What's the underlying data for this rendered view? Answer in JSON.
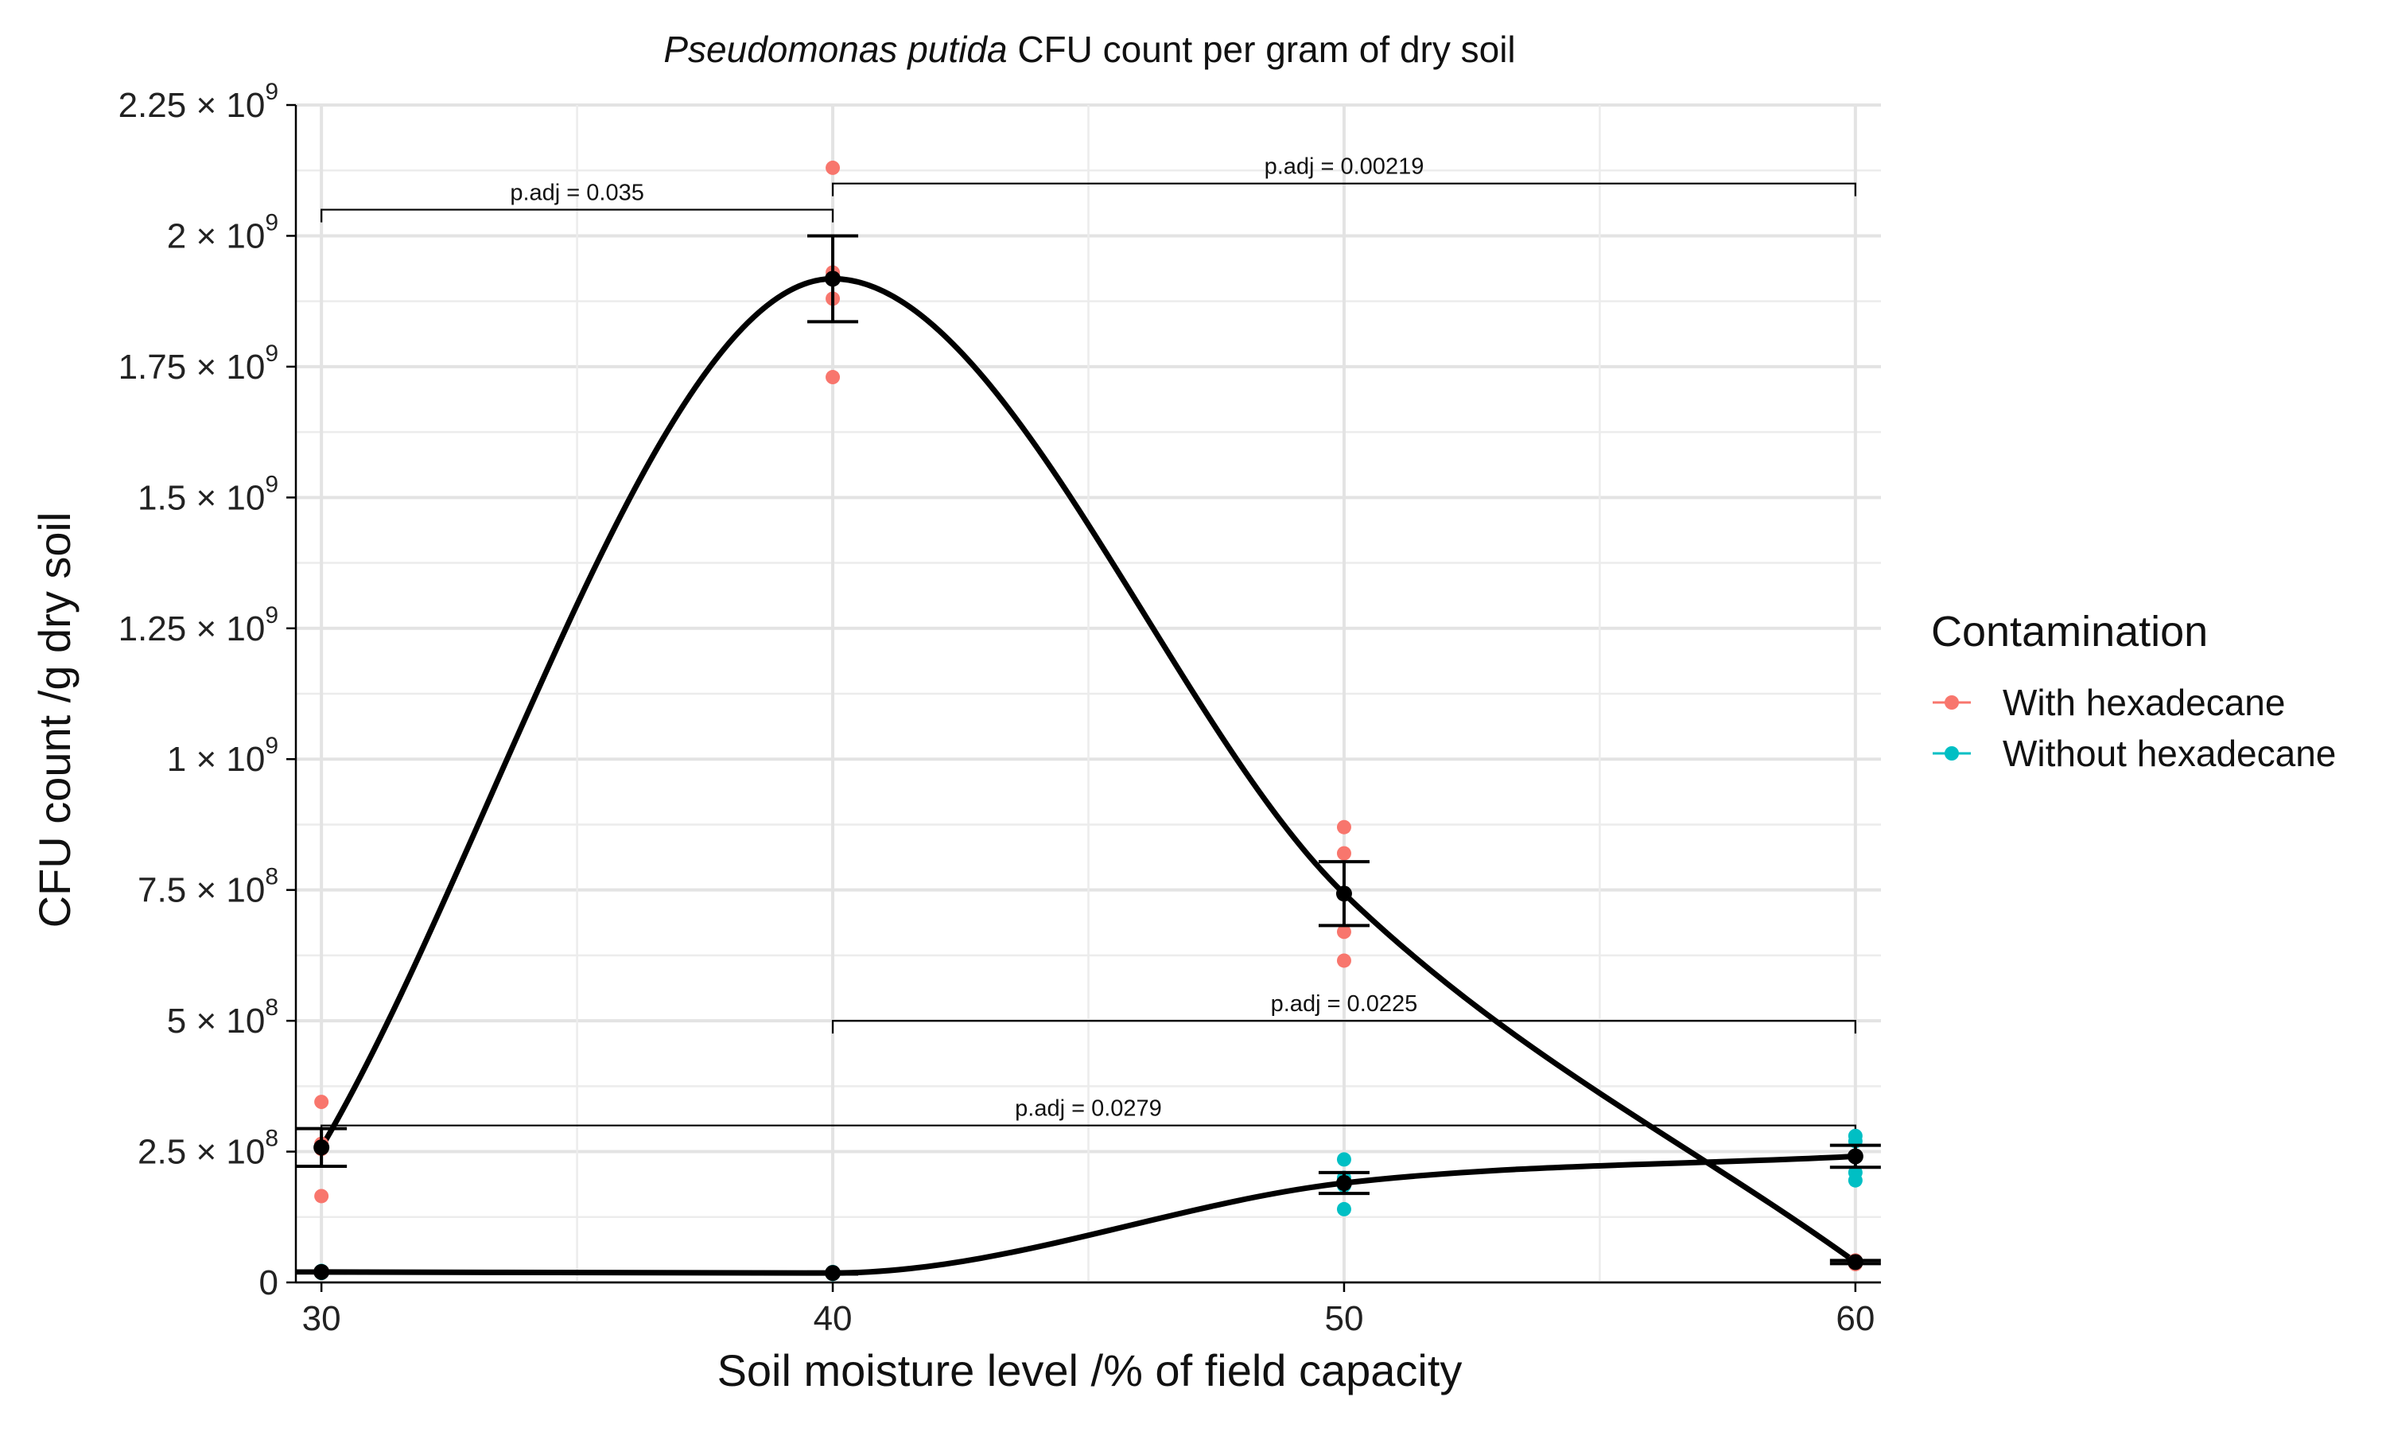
{
  "chart_data": {
    "type": "scatter",
    "title_italic": "Pseudomonas putida",
    "title_rest": " CFU count per gram of dry soil",
    "xlabel": "Soil moisture level /% of field capacity",
    "ylabel": "CFU count /g dry soil",
    "xlim": [
      29.5,
      60.5
    ],
    "ylim": [
      0,
      2250000000
    ],
    "x_ticks": [
      30,
      40,
      50,
      60
    ],
    "x_tick_labels": [
      "30",
      "40",
      "50",
      "60"
    ],
    "y_ticks": [
      0,
      250000000,
      500000000,
      750000000,
      1000000000,
      1250000000,
      1500000000,
      1750000000,
      2000000000,
      2250000000
    ],
    "y_tick_labels": [
      {
        "mant": "0",
        "exp": ""
      },
      {
        "mant": "2.5 × 10",
        "exp": "8"
      },
      {
        "mant": "5 × 10",
        "exp": "8"
      },
      {
        "mant": "7.5 × 10",
        "exp": "8"
      },
      {
        "mant": "1 × 10",
        "exp": "9"
      },
      {
        "mant": "1.25 × 10",
        "exp": "9"
      },
      {
        "mant": "1.5 × 10",
        "exp": "9"
      },
      {
        "mant": "1.75 × 10",
        "exp": "9"
      },
      {
        "mant": "2 × 10",
        "exp": "9"
      },
      {
        "mant": "2.25 × 10",
        "exp": "9"
      }
    ],
    "grid": true,
    "legend": {
      "title": "Contamination",
      "position": "right",
      "entries": [
        {
          "label": "With hexadecane",
          "color": "#F8766D"
        },
        {
          "label": "Without hexadecane",
          "color": "#00BFC4"
        }
      ]
    },
    "series": [
      {
        "name": "With hexadecane",
        "color": "#F8766D",
        "points": [
          {
            "x": 30,
            "y": 345000000
          },
          {
            "x": 30,
            "y": 265000000
          },
          {
            "x": 30,
            "y": 255000000
          },
          {
            "x": 30,
            "y": 165000000
          },
          {
            "x": 40,
            "y": 2130000000
          },
          {
            "x": 40,
            "y": 1930000000
          },
          {
            "x": 40,
            "y": 1880000000
          },
          {
            "x": 40,
            "y": 1730000000
          },
          {
            "x": 50,
            "y": 870000000
          },
          {
            "x": 50,
            "y": 820000000
          },
          {
            "x": 50,
            "y": 670000000
          },
          {
            "x": 50,
            "y": 615000000
          },
          {
            "x": 60,
            "y": 42000000
          },
          {
            "x": 60,
            "y": 38000000
          },
          {
            "x": 60,
            "y": 35000000
          },
          {
            "x": 60,
            "y": 40000000
          }
        ],
        "means": [
          {
            "x": 30,
            "y": 258000000,
            "err": 36000000
          },
          {
            "x": 40,
            "y": 1918000000,
            "err": 82000000
          },
          {
            "x": 50,
            "y": 743000000,
            "err": 61000000
          },
          {
            "x": 60,
            "y": 39000000,
            "err": 3000000
          }
        ]
      },
      {
        "name": "Without hexadecane",
        "color": "#00BFC4",
        "points": [
          {
            "x": 30,
            "y": 22000000
          },
          {
            "x": 30,
            "y": 20000000
          },
          {
            "x": 30,
            "y": 18000000
          },
          {
            "x": 30,
            "y": 21000000
          },
          {
            "x": 40,
            "y": 20000000
          },
          {
            "x": 40,
            "y": 18000000
          },
          {
            "x": 40,
            "y": 16000000
          },
          {
            "x": 40,
            "y": 19000000
          },
          {
            "x": 50,
            "y": 235000000
          },
          {
            "x": 50,
            "y": 200000000
          },
          {
            "x": 50,
            "y": 185000000
          },
          {
            "x": 50,
            "y": 140000000
          },
          {
            "x": 60,
            "y": 280000000
          },
          {
            "x": 60,
            "y": 270000000
          },
          {
            "x": 60,
            "y": 210000000
          },
          {
            "x": 60,
            "y": 195000000
          }
        ],
        "means": [
          {
            "x": 30,
            "y": 20000000,
            "err": 2000000
          },
          {
            "x": 40,
            "y": 18000000,
            "err": 2000000
          },
          {
            "x": 50,
            "y": 190000000,
            "err": 20000000
          },
          {
            "x": 60,
            "y": 241000000,
            "err": 21000000
          }
        ]
      }
    ],
    "annotations": [
      {
        "label": "p.adj = 0.035",
        "x1": 30,
        "x2": 40,
        "y": 2050000000
      },
      {
        "label": "p.adj = 0.00219",
        "x1": 40,
        "x2": 60,
        "y": 2100000000
      },
      {
        "label": "p.adj = 0.0225",
        "x1": 40,
        "x2": 60,
        "y": 500000000
      },
      {
        "label": "p.adj = 0.0279",
        "x1": 30,
        "x2": 60,
        "y": 300000000
      }
    ]
  }
}
